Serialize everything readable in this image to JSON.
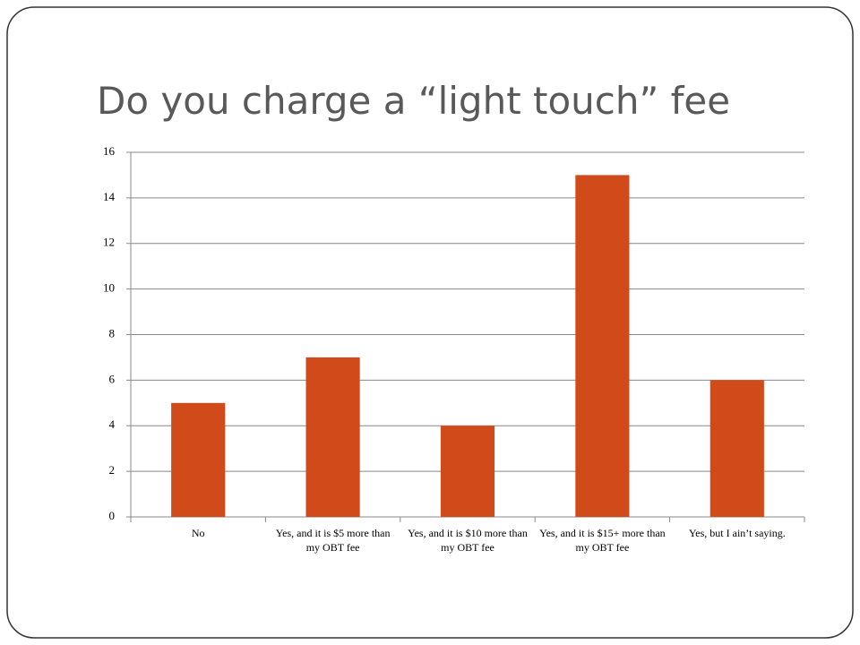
{
  "chart_data": {
    "type": "bar",
    "title": "Do you charge a “light touch” fee",
    "categories": [
      "No",
      "Yes, and it is $5 more than my OBT fee",
      "Yes, and it is $10 more than my OBT fee",
      "Yes, and it is $15+ more than my OBT fee",
      "Yes, but I ain’t saying."
    ],
    "values": [
      5,
      7,
      4,
      15,
      6
    ],
    "color": "#d04a1a",
    "ylim": [
      0,
      16
    ],
    "yticks": [
      0,
      2,
      4,
      6,
      8,
      10,
      12,
      14,
      16
    ],
    "grid": true
  }
}
